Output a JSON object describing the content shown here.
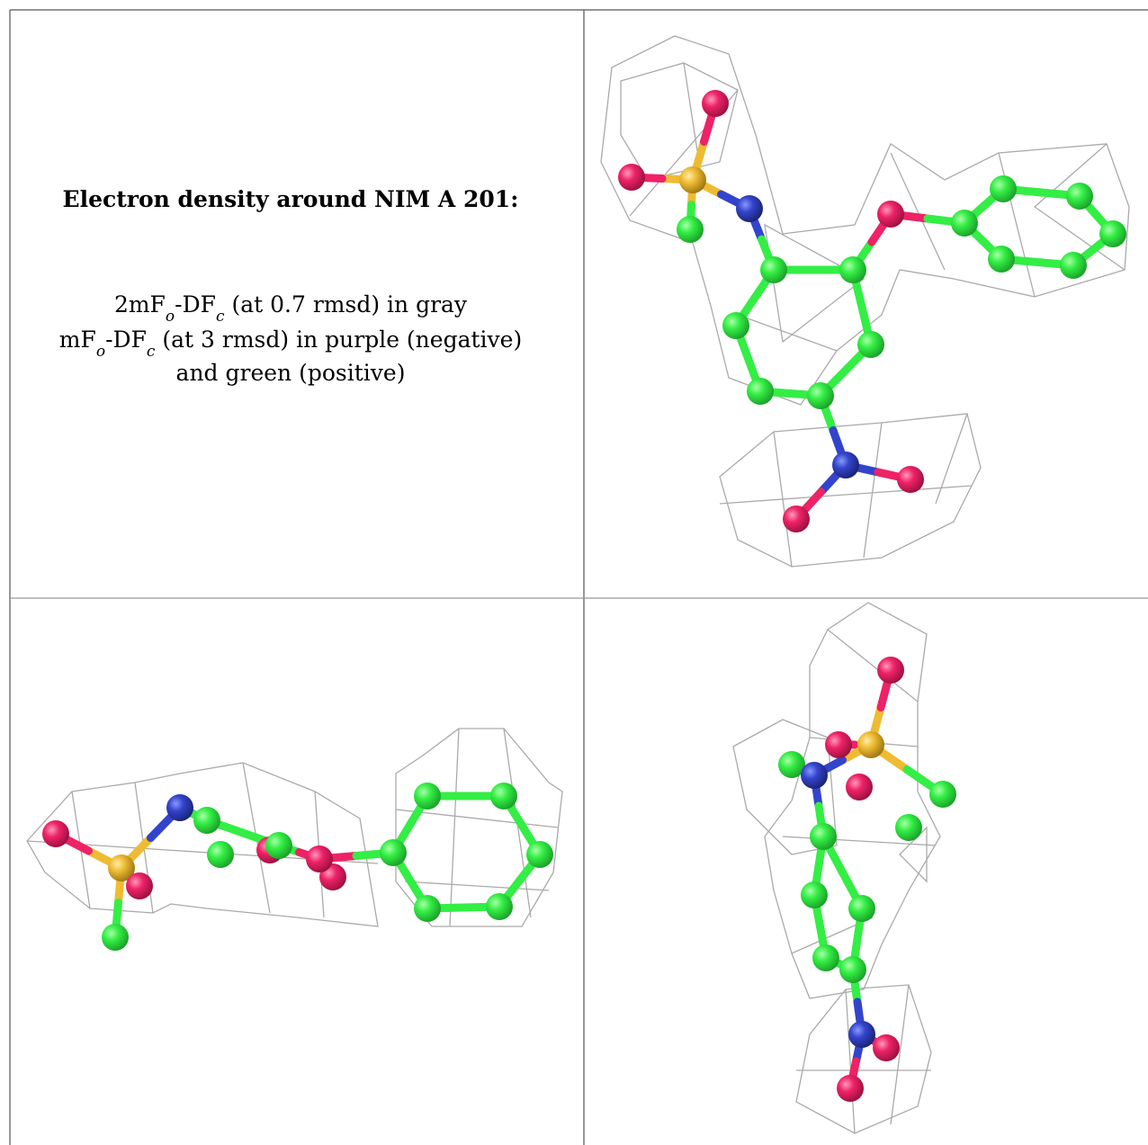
{
  "caption": {
    "title": "Electron density around NIM A 201:",
    "line1": [
      "2mF",
      "o",
      "-DF",
      "c",
      " (at 0.7 rmsd) in gray"
    ],
    "line2": [
      "mF",
      "o",
      "-DF",
      "c",
      " (at 3 rmsd) in purple (negative)"
    ],
    "line3": "and green (positive)"
  }
}
